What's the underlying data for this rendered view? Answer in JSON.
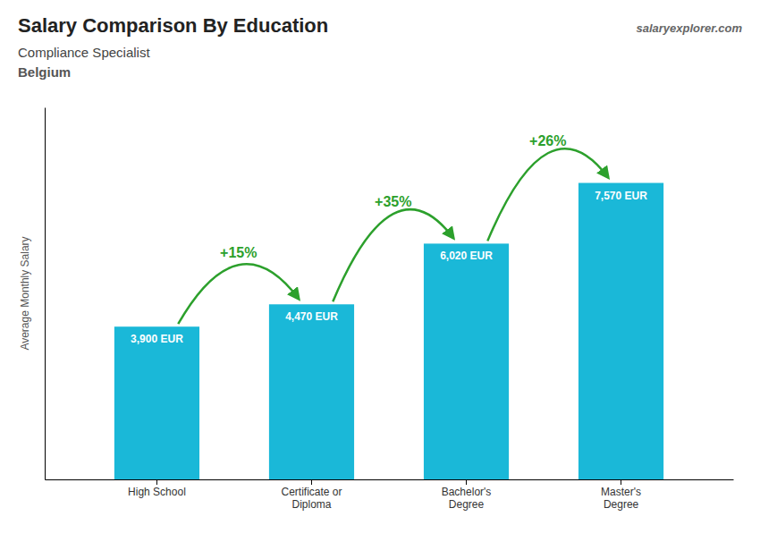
{
  "chart_data": {
    "type": "bar",
    "title": "Salary Comparison By Education",
    "subtitle": [
      "Compliance Specialist",
      "Belgium"
    ],
    "source": "salaryexplorer.com",
    "y_label": "Average Monthly Salary",
    "categories": [
      "High School",
      "Certificate or\nDiploma",
      "Bachelor's\nDegree",
      "Master's\nDegree"
    ],
    "values": [
      3900,
      4470,
      6020,
      7570
    ],
    "value_labels": [
      "3,900 EUR",
      "4,470 EUR",
      "6,020 EUR",
      "7,570 EUR"
    ],
    "data_labels": true,
    "annotations": [
      "+15%",
      "+35%",
      "+26%"
    ],
    "color": "#1ab8d8",
    "ylim": [
      0,
      9500
    ],
    "tick_labels": "x",
    "grid": false
  }
}
